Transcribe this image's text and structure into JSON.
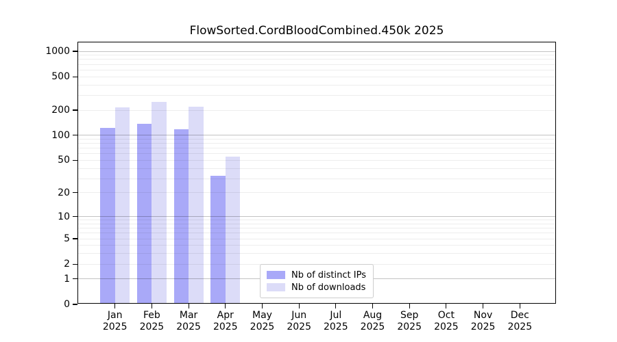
{
  "chart_data": {
    "type": "bar",
    "title": "FlowSorted.CordBloodCombined.450k 2025",
    "categories": [
      "Jan",
      "Feb",
      "Mar",
      "Apr",
      "May",
      "Jun",
      "Jul",
      "Aug",
      "Sep",
      "Oct",
      "Nov",
      "Dec"
    ],
    "category_year": "2025",
    "series": [
      {
        "name": "Nb of distinct IPs",
        "color": "#a9a9f8",
        "values": [
          120,
          135,
          115,
          32,
          null,
          null,
          null,
          null,
          null,
          null,
          null,
          null
        ]
      },
      {
        "name": "Nb of downloads",
        "color": "#dcdcf8",
        "values": [
          210,
          245,
          215,
          54,
          null,
          null,
          null,
          null,
          null,
          null,
          null,
          null
        ]
      }
    ],
    "yscale": "log10(1+y)",
    "yticks": [
      0,
      1,
      2,
      5,
      10,
      20,
      50,
      100,
      200,
      500,
      1000
    ],
    "ytick_labels": [
      "0",
      "1",
      "2",
      "5",
      "10",
      "20",
      "50",
      "100",
      "200",
      "500",
      "1000"
    ],
    "grid_major_at": [
      1,
      10,
      100,
      1000
    ],
    "grid_minor": "2-9 steps within each decade",
    "grid_on": true,
    "ylim": [
      0,
      1275
    ],
    "legend_position": "lower center",
    "colors": {
      "distinct_ips": "#a9a9f8",
      "downloads": "#dcdcf8",
      "grid_major": "#c2c2c2",
      "grid_minor": "#ededed",
      "axis": "#000000"
    }
  }
}
